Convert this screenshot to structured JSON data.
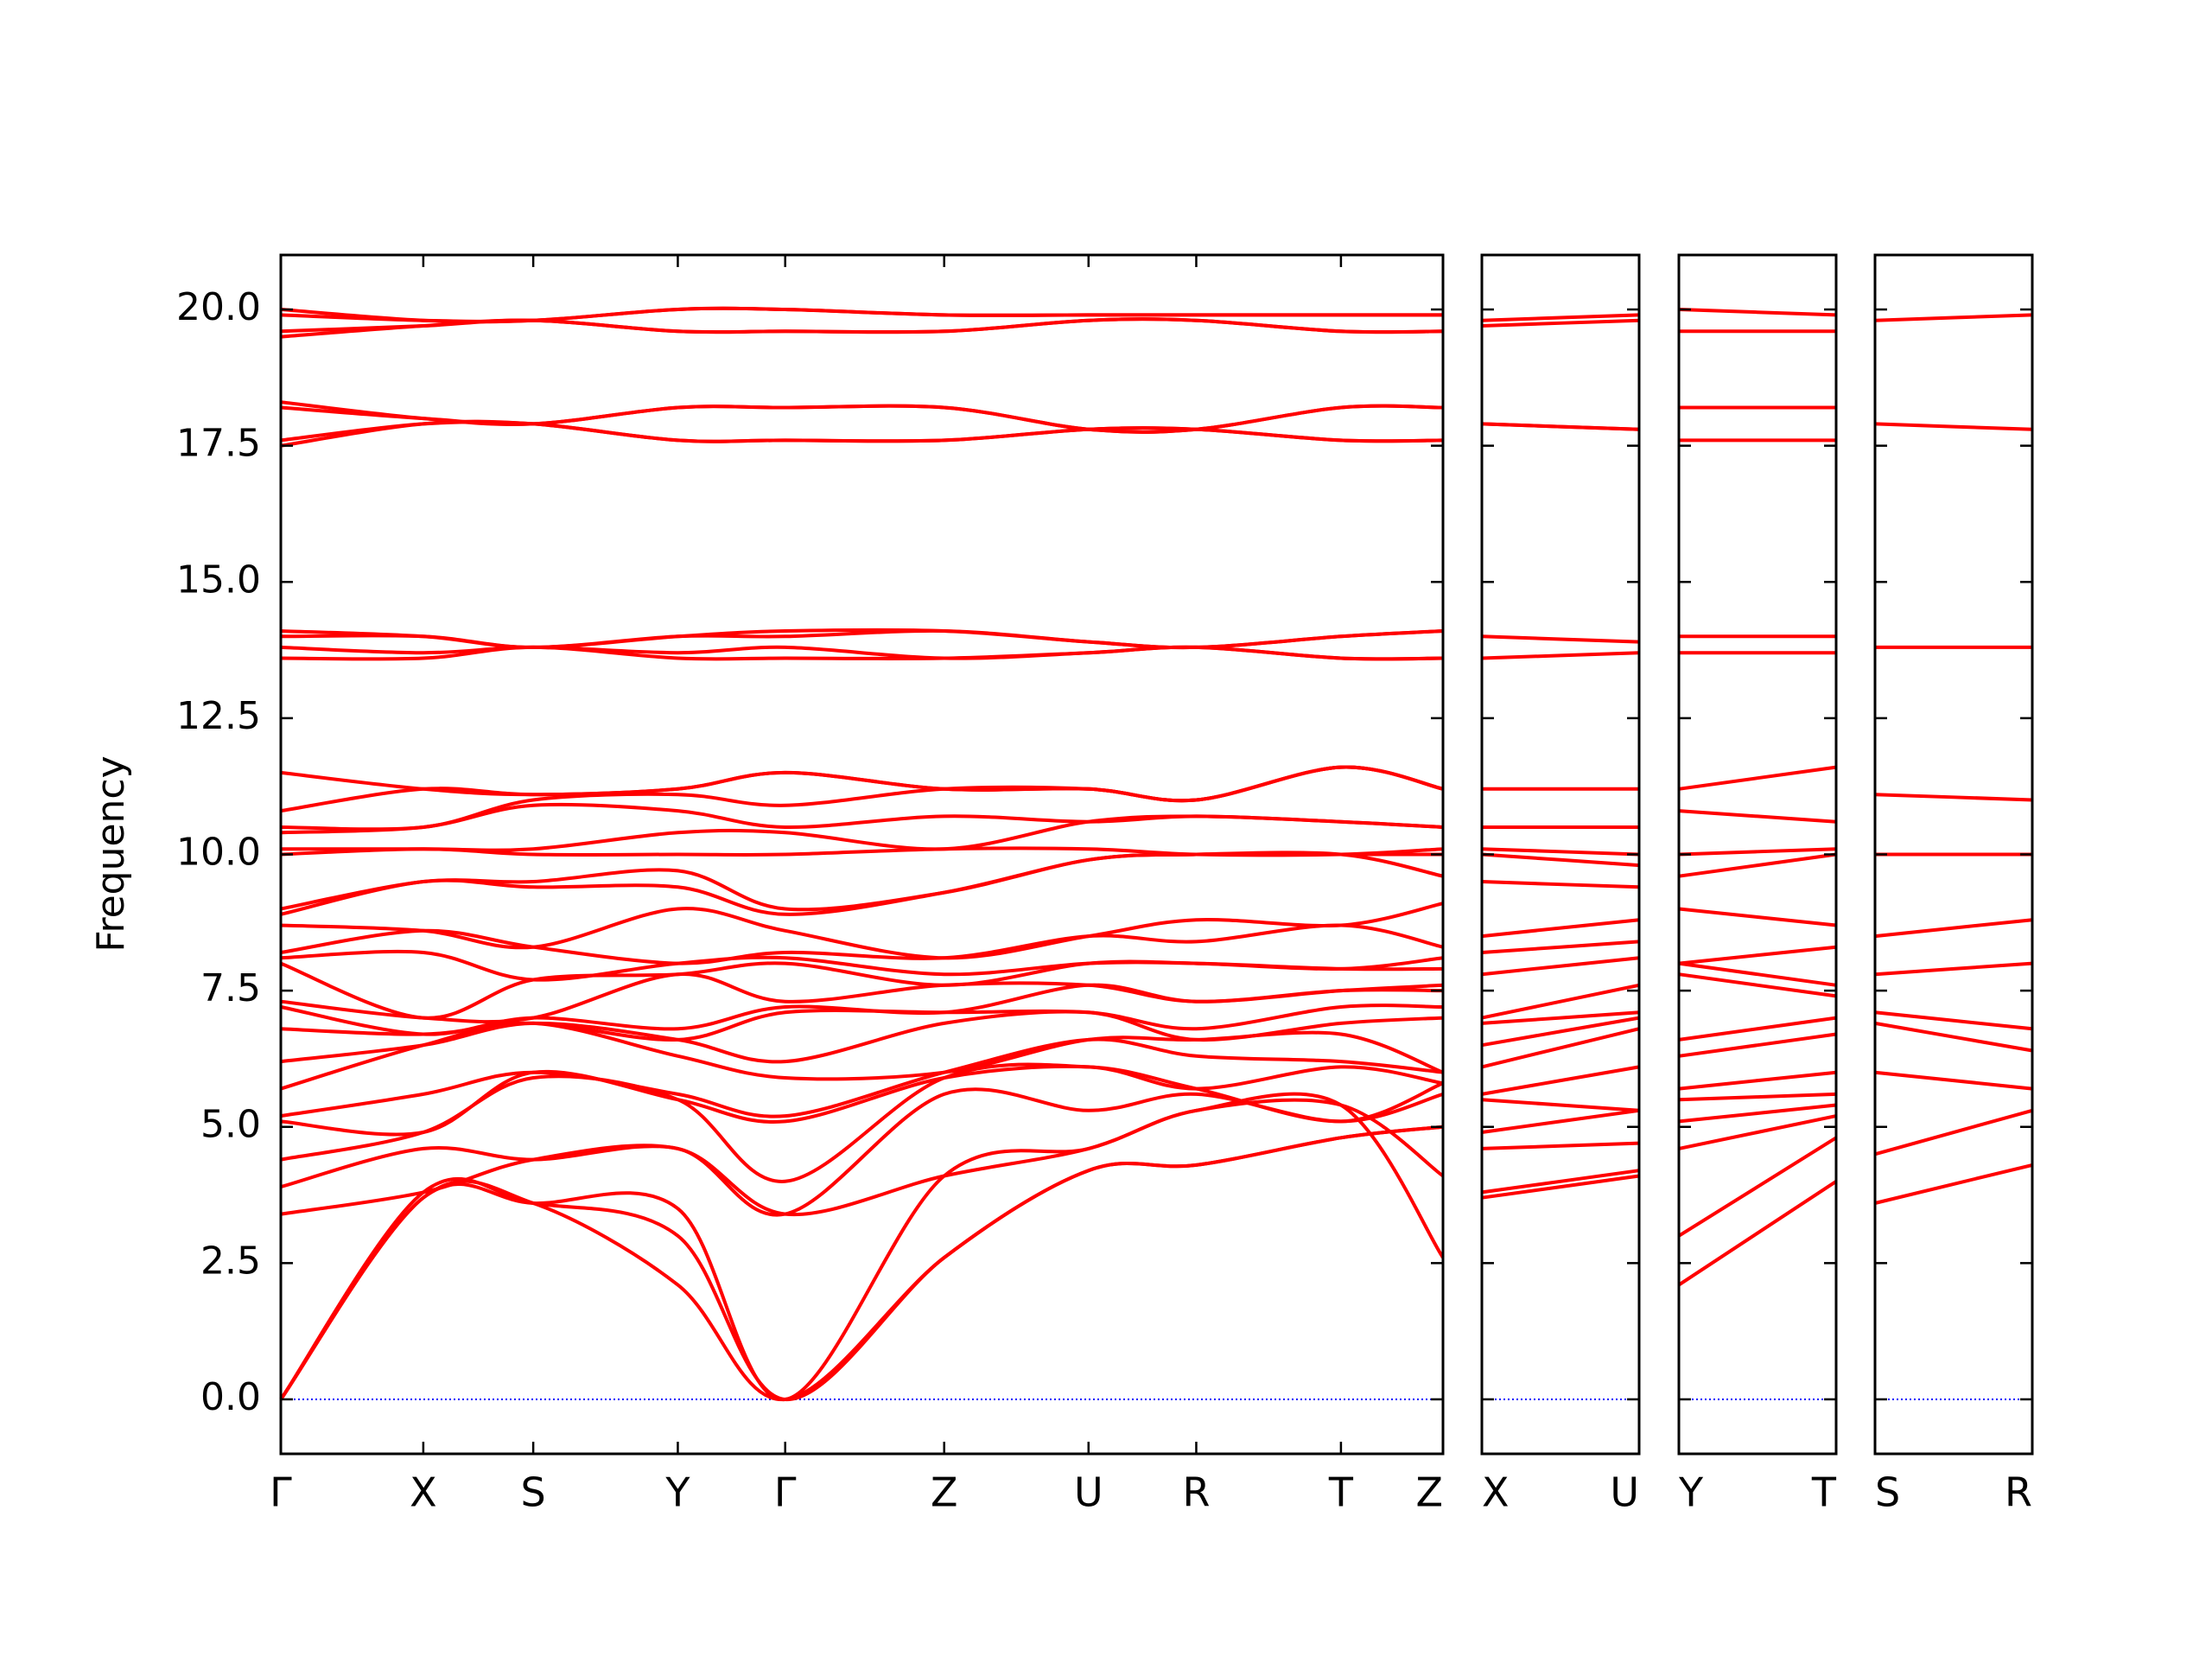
{
  "chart_data": {
    "type": "line",
    "title": "",
    "ylabel": "Frequency",
    "xlabel": "",
    "ylim": [
      -1.0,
      21.0
    ],
    "yticks": [
      "0.0",
      "2.5",
      "5.0",
      "7.5",
      "10.0",
      "12.5",
      "15.0",
      "17.5",
      "20.0"
    ],
    "grid": false,
    "legend": "none",
    "colors": {
      "band": "#ff0000",
      "zero_line": "#0000ff",
      "axes": "#000000"
    },
    "panels": [
      {
        "labels": [
          "Γ",
          "X",
          "S",
          "Y",
          "Γ",
          "Z",
          "U",
          "R",
          "T",
          "Z"
        ],
        "bands": [
          [
            0.0,
            3.7,
            3.6,
            2.1,
            0.0,
            2.6,
            4.2,
            4.3,
            4.8,
            5.0
          ],
          [
            0.0,
            3.8,
            3.6,
            3.0,
            0.0,
            2.6,
            4.2,
            4.3,
            4.8,
            5.0
          ],
          [
            0.0,
            3.7,
            3.6,
            3.5,
            0.0,
            4.1,
            4.6,
            5.3,
            5.4,
            2.6
          ],
          [
            3.4,
            3.8,
            4.4,
            4.6,
            3.4,
            4.1,
            4.6,
            5.3,
            5.4,
            4.1
          ],
          [
            3.9,
            4.6,
            4.4,
            4.6,
            3.4,
            5.6,
            5.3,
            5.6,
            5.1,
            5.6
          ],
          [
            4.4,
            4.9,
            5.9,
            5.5,
            4.0,
            5.9,
            6.1,
            5.7,
            5.1,
            5.8
          ],
          [
            5.1,
            4.9,
            6.0,
            5.5,
            5.1,
            5.9,
            6.1,
            5.7,
            6.1,
            5.8
          ],
          [
            5.2,
            5.6,
            6.0,
            5.6,
            5.2,
            6.0,
            6.6,
            6.3,
            6.2,
            6.0
          ],
          [
            5.7,
            6.5,
            6.9,
            6.3,
            5.9,
            6.0,
            6.6,
            6.6,
            6.7,
            6.0
          ],
          [
            6.2,
            6.5,
            6.9,
            6.6,
            6.2,
            6.9,
            7.1,
            6.6,
            6.9,
            7.0
          ],
          [
            6.8,
            6.7,
            6.9,
            6.6,
            7.1,
            7.1,
            7.1,
            6.8,
            7.2,
            7.2
          ],
          [
            7.2,
            6.7,
            7.0,
            6.8,
            7.2,
            7.1,
            7.6,
            7.3,
            7.5,
            7.5
          ],
          [
            7.3,
            7.0,
            7.0,
            7.8,
            7.3,
            7.6,
            7.6,
            7.3,
            7.5,
            7.6
          ],
          [
            8.0,
            7.0,
            7.7,
            7.8,
            8.0,
            7.6,
            8.0,
            8.0,
            7.9,
            7.9
          ],
          [
            8.1,
            8.2,
            7.7,
            8.0,
            8.1,
            7.8,
            8.0,
            8.0,
            7.9,
            8.1
          ],
          [
            8.2,
            8.6,
            8.3,
            8.0,
            8.2,
            8.1,
            8.5,
            8.4,
            8.7,
            8.3
          ],
          [
            8.7,
            8.6,
            8.3,
            9.0,
            8.6,
            8.1,
            8.5,
            8.8,
            8.7,
            9.1
          ],
          [
            8.9,
            9.5,
            9.4,
            9.4,
            8.9,
            9.3,
            9.9,
            10.0,
            10.0,
            9.6
          ],
          [
            9.0,
            9.5,
            9.5,
            9.7,
            9.0,
            9.3,
            9.9,
            10.0,
            10.0,
            10.0
          ],
          [
            10.0,
            10.1,
            10.0,
            10.0,
            10.0,
            10.1,
            10.1,
            10.0,
            10.0,
            10.1
          ],
          [
            10.1,
            10.1,
            10.1,
            10.4,
            10.4,
            10.1,
            10.6,
            10.7,
            10.6,
            10.5
          ],
          [
            10.4,
            10.5,
            10.9,
            10.8,
            10.5,
            10.7,
            10.6,
            10.7,
            10.6,
            10.5
          ],
          [
            10.5,
            10.5,
            11.0,
            11.1,
            10.9,
            11.2,
            11.2,
            11.0,
            11.6,
            11.2
          ],
          [
            10.8,
            11.2,
            11.1,
            11.2,
            11.5,
            11.2,
            11.2,
            11.0,
            11.6,
            11.2
          ],
          [
            11.5,
            11.2,
            11.1,
            11.2,
            11.5,
            11.2,
            11.2,
            11.0,
            11.6,
            11.2
          ],
          [
            13.6,
            13.6,
            13.8,
            13.6,
            13.6,
            13.6,
            13.7,
            13.8,
            13.6,
            13.6
          ],
          [
            13.8,
            13.7,
            13.8,
            13.7,
            13.8,
            13.6,
            13.7,
            13.8,
            13.6,
            13.6
          ],
          [
            14.0,
            14.0,
            13.8,
            14.0,
            14.0,
            14.1,
            13.9,
            13.8,
            14.0,
            14.1
          ],
          [
            14.1,
            14.0,
            13.8,
            14.0,
            14.1,
            14.1,
            13.9,
            13.8,
            14.0,
            14.1
          ],
          [
            17.5,
            17.9,
            17.9,
            17.6,
            17.6,
            17.6,
            17.8,
            17.8,
            17.6,
            17.6
          ],
          [
            17.6,
            17.9,
            17.9,
            17.6,
            17.6,
            17.6,
            17.8,
            17.8,
            17.6,
            17.6
          ],
          [
            18.2,
            18.0,
            17.9,
            18.2,
            18.2,
            18.2,
            17.8,
            17.8,
            18.2,
            18.2
          ],
          [
            18.3,
            18.0,
            17.9,
            18.2,
            18.2,
            18.2,
            17.8,
            17.8,
            18.2,
            18.2
          ],
          [
            19.5,
            19.7,
            19.8,
            19.6,
            19.6,
            19.6,
            19.8,
            19.8,
            19.6,
            19.6
          ],
          [
            19.6,
            19.7,
            19.8,
            19.6,
            19.6,
            19.6,
            19.8,
            19.8,
            19.6,
            19.6
          ],
          [
            19.9,
            19.8,
            19.8,
            20.0,
            20.0,
            19.9,
            19.9,
            19.9,
            19.9,
            19.9
          ],
          [
            20.0,
            19.8,
            19.8,
            20.0,
            20.0,
            19.9,
            19.9,
            19.9,
            19.9,
            19.9
          ]
        ]
      },
      {
        "labels": [
          "X",
          "U"
        ],
        "bands": [
          [
            3.7,
            4.1
          ],
          [
            3.8,
            4.2
          ],
          [
            4.6,
            4.7
          ],
          [
            4.9,
            5.3
          ],
          [
            5.5,
            5.3
          ],
          [
            5.6,
            6.1
          ],
          [
            6.1,
            6.8
          ],
          [
            6.5,
            7.0
          ],
          [
            6.9,
            7.1
          ],
          [
            7.0,
            7.6
          ],
          [
            7.8,
            8.1
          ],
          [
            8.2,
            8.4
          ],
          [
            8.5,
            8.8
          ],
          [
            9.5,
            9.4
          ],
          [
            10.0,
            9.8
          ],
          [
            10.1,
            10.0
          ],
          [
            10.5,
            10.5
          ],
          [
            11.2,
            11.2
          ],
          [
            13.6,
            13.7
          ],
          [
            14.0,
            13.9
          ],
          [
            17.9,
            17.8
          ],
          [
            17.9,
            17.8
          ],
          [
            19.7,
            19.8
          ],
          [
            19.8,
            19.9
          ]
        ]
      },
      {
        "labels": [
          "Y",
          "T"
        ],
        "bands": [
          [
            2.1,
            4.0
          ],
          [
            3.0,
            4.8
          ],
          [
            4.6,
            5.2
          ],
          [
            5.1,
            5.4
          ],
          [
            5.5,
            5.6
          ],
          [
            5.7,
            6.0
          ],
          [
            6.3,
            6.7
          ],
          [
            6.6,
            7.0
          ],
          [
            7.8,
            7.4
          ],
          [
            8.0,
            7.6
          ],
          [
            8.0,
            8.3
          ],
          [
            9.0,
            8.7
          ],
          [
            9.6,
            10.0
          ],
          [
            10.0,
            10.1
          ],
          [
            10.8,
            10.6
          ],
          [
            11.2,
            11.6
          ],
          [
            13.7,
            13.7
          ],
          [
            14.0,
            14.0
          ],
          [
            17.6,
            17.6
          ],
          [
            18.2,
            18.2
          ],
          [
            19.6,
            19.6
          ],
          [
            20.0,
            19.9
          ]
        ]
      },
      {
        "labels": [
          "S",
          "R"
        ],
        "bands": [
          [
            3.6,
            4.3
          ],
          [
            4.5,
            5.3
          ],
          [
            6.0,
            5.7
          ],
          [
            6.9,
            6.4
          ],
          [
            7.1,
            6.8
          ],
          [
            7.8,
            8.0
          ],
          [
            8.5,
            8.8
          ],
          [
            10.0,
            10.0
          ],
          [
            11.1,
            11.0
          ],
          [
            13.8,
            13.8
          ],
          [
            17.9,
            17.8
          ],
          [
            19.8,
            19.9
          ]
        ]
      }
    ]
  }
}
